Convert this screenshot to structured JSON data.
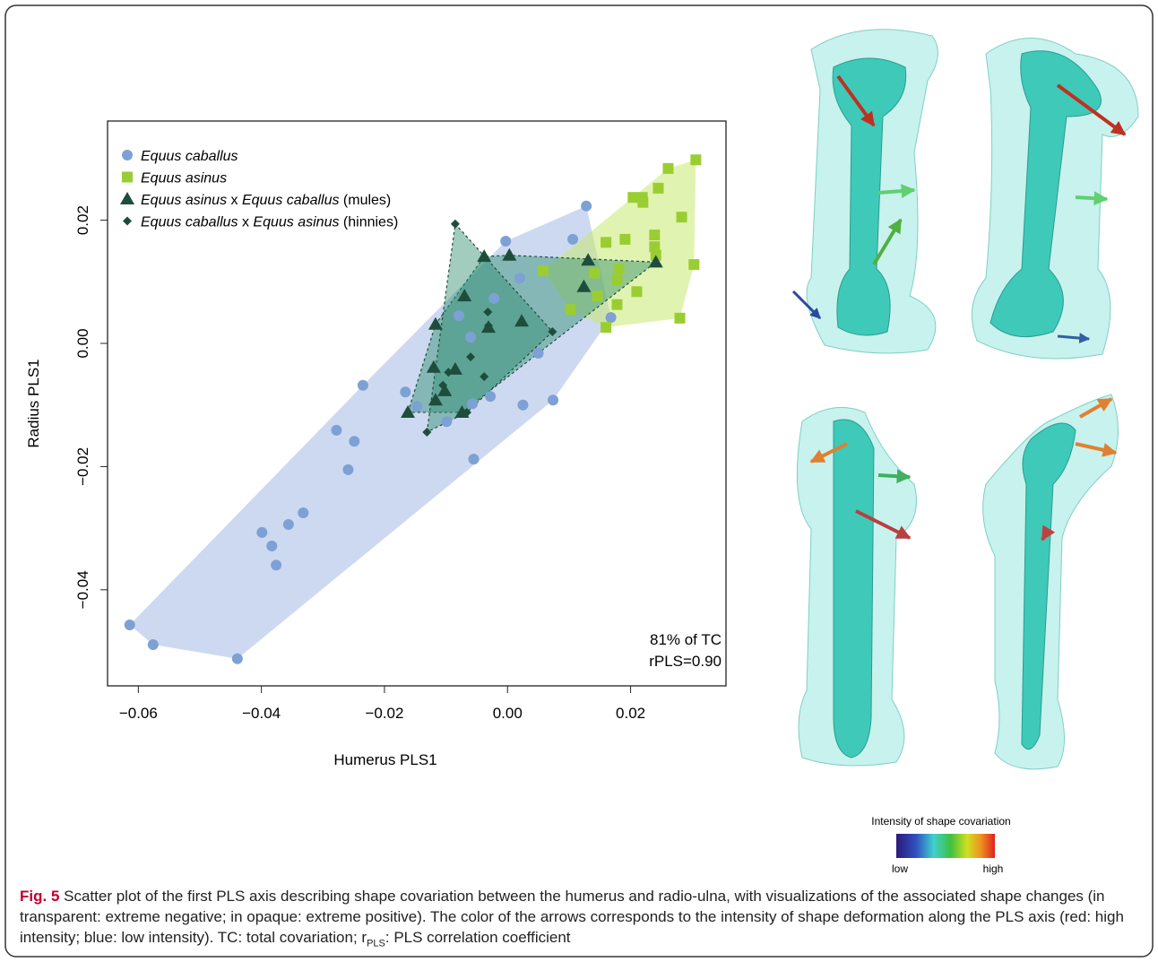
{
  "chart_data": {
    "type": "scatter",
    "x_label": "Humerus PLS1",
    "y_label": "Radius PLS1",
    "xlim": [
      -0.065,
      0.0355
    ],
    "ylim": [
      -0.0556,
      0.0361
    ],
    "xticks": [
      {
        "value": -0.06,
        "label": "−0.06"
      },
      {
        "value": -0.04,
        "label": "−0.04"
      },
      {
        "value": -0.02,
        "label": "−0.02"
      },
      {
        "value": 0,
        "label": "0.00"
      },
      0.02
    ],
    "yticks": [
      {
        "value": -0.04,
        "label": "−0.04"
      },
      {
        "value": -0.02,
        "label": "−0.02"
      },
      {
        "value": 0,
        "label": "0.00"
      },
      0.02
    ],
    "legend": "upper left",
    "annotations": [
      "81% of TC",
      "rPLS=0.90"
    ],
    "series": [
      {
        "name": "Equus caballus",
        "color": "#7da1d4",
        "marker": "circle",
        "x": [
          -0.0614,
          -0.0576,
          -0.0439,
          -0.0399,
          -0.0383,
          -0.0376,
          -0.0356,
          -0.0332,
          -0.0278,
          -0.0249,
          -0.0259,
          -0.0235,
          -0.0166,
          -0.0147,
          -0.0099,
          -0.0055,
          0.0025,
          0.0074,
          0.005,
          -0.0003,
          0.0106,
          0.0128,
          0.0168,
          -0.0028,
          -0.0057,
          -0.0079,
          -0.006,
          0.002,
          -0.0022
        ],
        "values": [
          -0.0457,
          -0.0489,
          -0.0512,
          -0.0307,
          -0.0329,
          -0.036,
          -0.0294,
          -0.0275,
          -0.0141,
          -0.0159,
          -0.0205,
          -0.0068,
          -0.0079,
          -0.0102,
          -0.0127,
          -0.0188,
          -0.01,
          -0.0092,
          -0.0016,
          0.0166,
          0.0169,
          0.0223,
          0.0042,
          -0.0086,
          -0.0098,
          0.0045,
          0.001,
          0.0106,
          0.0073
        ]
      },
      {
        "name": "Equus asinus",
        "color": "#9acd32",
        "marker": "square",
        "x": [
          0.0306,
          0.0261,
          0.0245,
          0.0204,
          0.0219,
          0.022,
          0.0283,
          0.0303,
          0.028,
          0.016,
          0.0191,
          0.0239,
          0.0239,
          0.0241,
          0.021,
          0.0181,
          0.0178,
          0.0178,
          0.016,
          0.0141,
          0.0058,
          0.0102,
          0.0146
        ],
        "values": [
          0.0298,
          0.0284,
          0.0252,
          0.0237,
          0.0237,
          0.0229,
          0.0205,
          0.0128,
          0.0041,
          0.0164,
          0.0169,
          0.0176,
          0.0157,
          0.0143,
          0.0084,
          0.0121,
          0.0103,
          0.0063,
          0.0026,
          0.0114,
          0.0118,
          0.0055,
          0.0077
        ]
      },
      {
        "name": "Equus asinus x Equus caballus (mules)",
        "color": "#1e4d3c",
        "marker": "triangle",
        "x": [
          -0.0038,
          0.0003,
          0.0131,
          0.0241,
          0.0124,
          -0.007,
          -0.0117,
          0.0023,
          -0.0031,
          -0.012,
          -0.0102,
          -0.0162,
          -0.0117,
          -0.0074,
          -0.0085
        ],
        "values": [
          0.0141,
          0.0143,
          0.0135,
          0.0132,
          0.0092,
          0.0077,
          0.0031,
          0.0036,
          0.0026,
          -0.0039,
          -0.0077,
          -0.0112,
          -0.0092,
          -0.0112,
          -0.0042
        ]
      },
      {
        "name": "Equus caballus x Equus asinus (hinnies)",
        "color": "#1e4d3c",
        "marker": "diamond",
        "x": [
          -0.0085,
          -0.0032,
          -0.006,
          -0.0038,
          -0.0096,
          -0.0105,
          -0.0131,
          -0.0066,
          0.0073,
          -0.0031
        ],
        "values": [
          0.0194,
          0.0051,
          -0.0022,
          -0.0054,
          -0.0047,
          -0.0068,
          -0.0144,
          -0.0112,
          0.0019,
          0.0029
        ]
      }
    ]
  },
  "colorbar": {
    "title": "Intensity of shape covariation",
    "low": "low",
    "high": "high"
  },
  "caption": {
    "label": "Fig. 5",
    "text_1": " Scatter plot of the first PLS axis describing shape covariation between the humerus and radio-ulna, with visualizations of the associated shape changes (in transparent: extreme negative; in opaque: extreme positive). The color of the arrows corresponds to the intensity of shape deformation along the PLS axis (red: high intensity; blue: low intensity). TC: total covariation; r",
    "subscript": "PLS",
    "text_2": ": PLS correlation coefficient"
  }
}
